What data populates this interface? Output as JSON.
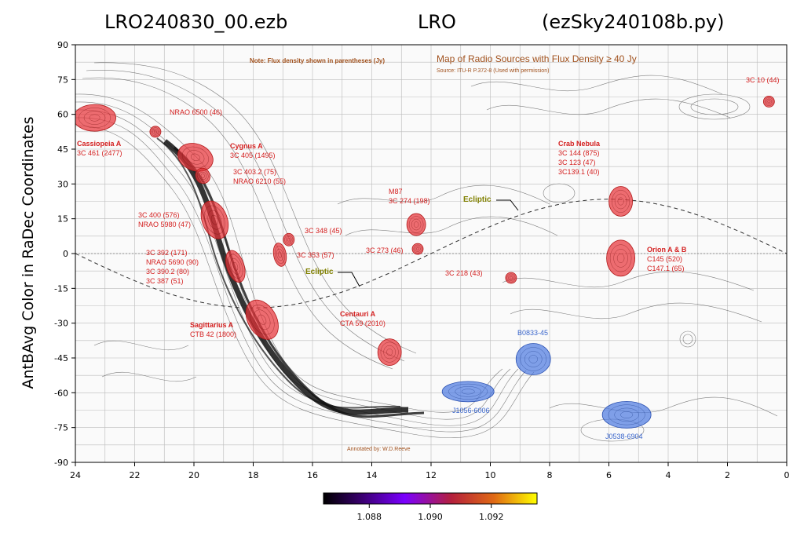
{
  "header": {
    "left": "LRO240830_00.ezb",
    "center": "LRO",
    "right": "(ezSky240108b.py)"
  },
  "chart_data": {
    "type": "heatmap",
    "title": "",
    "xlabel": "",
    "ylabel": "AntBAvg Color in RaDec Coordinates",
    "xlim": [
      24,
      0
    ],
    "ylim": [
      -90,
      90
    ],
    "x_ticks": [
      "24",
      "22",
      "20",
      "18",
      "16",
      "14",
      "12",
      "10",
      "8",
      "6",
      "4",
      "2",
      "0"
    ],
    "y_ticks": [
      "90",
      "75",
      "60",
      "45",
      "30",
      "15",
      "0",
      "-15",
      "-30",
      "-45",
      "-60",
      "-75",
      "-90"
    ],
    "scan_line": {
      "dec": 36.5,
      "ra_start": 24,
      "ra_end": 0
    },
    "colorbar": {
      "colormap": "gnuplot",
      "range": [
        1.0865,
        1.0935
      ],
      "ticks": [
        "1.088",
        "1.090",
        "1.092"
      ]
    },
    "map_overlay": {
      "title": "Map of Radio Sources with Flux Density ≥ 40 Jy",
      "source": "Source: ITU-R P.372-8 (Used with permission)",
      "note": "Note: Flux density shown in parentheses (Jy)",
      "credit": "Annotated by: W.D.Reeve",
      "ecliptic_label": "Ecliptic",
      "red_sources": [
        {
          "ra": 23.35,
          "dec": 58.5,
          "labels": [
            "Cassiopeia A",
            "3C 461 (2477)"
          ],
          "bold": true
        },
        {
          "ra": 21.3,
          "dec": 52.5,
          "labels": [
            "NRAO 6500 (46)"
          ]
        },
        {
          "ra": 19.95,
          "dec": 41.5,
          "labels": [
            "Cygnus A",
            "3C 405 (1495)"
          ],
          "bold": true
        },
        {
          "ra": 19.7,
          "dec": 33.5,
          "labels": [
            "3C 403.2 (75)",
            "NRAO 6210 (55)"
          ]
        },
        {
          "ra": 19.3,
          "dec": 14.5,
          "labels": [
            "3C 400 (576)",
            "NRAO 5980 (47)"
          ]
        },
        {
          "ra": 18.6,
          "dec": -5.5,
          "labels": [
            "3C 392 (171)",
            "NRAO 5690 (90)",
            "3C 390.2 (80)",
            "3C 387 (51)"
          ]
        },
        {
          "ra": 17.7,
          "dec": -28.5,
          "labels": [
            "Sagittarius A",
            "CTB 42 (1800)"
          ],
          "bold": true
        },
        {
          "ra": 16.8,
          "dec": 6,
          "labels": [
            "3C 348 (45)"
          ]
        },
        {
          "ra": 17.1,
          "dec": -0.5,
          "labels": [
            "3C 353 (57)"
          ]
        },
        {
          "ra": 13.4,
          "dec": -42.5,
          "labels": [
            "Centauri A",
            "CTA 59 (2010)"
          ],
          "bold": true
        },
        {
          "ra": 12.5,
          "dec": 12.5,
          "labels": [
            "M87",
            "3C 274 (198)"
          ]
        },
        {
          "ra": 12.45,
          "dec": 2,
          "labels": [
            "3C 273 (46)"
          ]
        },
        {
          "ra": 9.3,
          "dec": -10.5,
          "labels": [
            "3C 218 (43)"
          ]
        },
        {
          "ra": 5.6,
          "dec": 22.5,
          "labels": [
            "Crab Nebula",
            "3C 144 (875)",
            "3C 123 (47)",
            "3C139.1 (40)"
          ],
          "bold": true
        },
        {
          "ra": 5.6,
          "dec": -2,
          "labels": [
            "Orion A & B",
            "C145 (520)",
            "C147.1 (65)"
          ],
          "bold": true
        },
        {
          "ra": 0.6,
          "dec": 65.5,
          "labels": [
            "3C 10 (44)"
          ]
        }
      ],
      "blue_sources": [
        {
          "ra": 8.55,
          "dec": -45.5,
          "label": "B0833-45"
        },
        {
          "ra": 10.75,
          "dec": -59.5,
          "label": "J1056-6006"
        },
        {
          "ra": 5.4,
          "dec": -69.5,
          "label": "J0538-6904"
        }
      ]
    }
  }
}
